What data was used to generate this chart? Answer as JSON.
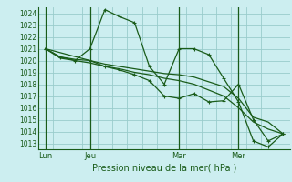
{
  "title": "Pression niveau de la mer( hPa )",
  "background_color": "#cceef0",
  "grid_color": "#99cccc",
  "line_color": "#1a5c1a",
  "ylim": [
    1012.5,
    1024.5
  ],
  "yticks": [
    1013,
    1014,
    1015,
    1016,
    1017,
    1018,
    1019,
    1020,
    1021,
    1022,
    1023,
    1024
  ],
  "day_labels": [
    {
      "label": "Lun",
      "x": 0
    },
    {
      "label": "Jeu",
      "x": 3
    },
    {
      "label": "Mar",
      "x": 9
    },
    {
      "label": "Mer",
      "x": 13
    }
  ],
  "day_vlines": [
    0,
    3,
    9,
    13
  ],
  "xlim": [
    -0.5,
    16.5
  ],
  "series": [
    {
      "x": [
        0,
        1,
        2,
        3,
        4,
        5,
        6,
        7,
        8,
        9,
        10,
        11,
        12,
        13,
        14,
        15,
        16
      ],
      "y": [
        1021.0,
        1020.3,
        1020.0,
        1021.0,
        1024.3,
        1023.7,
        1023.2,
        1019.5,
        1018.0,
        1021.0,
        1021.0,
        1020.5,
        1018.5,
        1016.5,
        1013.2,
        1012.7,
        1013.8
      ],
      "marker": "+"
    },
    {
      "x": [
        0,
        1,
        2,
        3,
        4,
        5,
        6,
        7,
        8,
        9,
        10,
        11,
        12,
        13,
        14,
        15,
        16
      ],
      "y": [
        1021.0,
        1020.3,
        1020.1,
        1020.0,
        1019.7,
        1019.5,
        1019.3,
        1019.1,
        1018.9,
        1018.8,
        1018.6,
        1018.2,
        1017.8,
        1016.8,
        1015.2,
        1014.8,
        1013.8
      ],
      "marker": null
    },
    {
      "x": [
        0,
        1,
        2,
        3,
        4,
        5,
        6,
        7,
        8,
        9,
        10,
        11,
        12,
        13,
        14,
        15,
        16
      ],
      "y": [
        1021.0,
        1020.2,
        1020.0,
        1019.8,
        1019.5,
        1019.3,
        1019.0,
        1018.8,
        1018.5,
        1018.3,
        1018.0,
        1017.5,
        1017.0,
        1016.0,
        1014.8,
        1014.2,
        1013.8
      ],
      "marker": null
    },
    {
      "x": [
        0,
        3,
        4,
        5,
        6,
        7,
        8,
        9,
        10,
        11,
        12,
        13,
        14,
        15,
        16
      ],
      "y": [
        1021.0,
        1020.0,
        1019.5,
        1019.2,
        1018.8,
        1018.3,
        1017.0,
        1016.8,
        1017.2,
        1016.5,
        1016.6,
        1018.0,
        1015.0,
        1013.2,
        1013.8
      ],
      "marker": "+"
    }
  ]
}
